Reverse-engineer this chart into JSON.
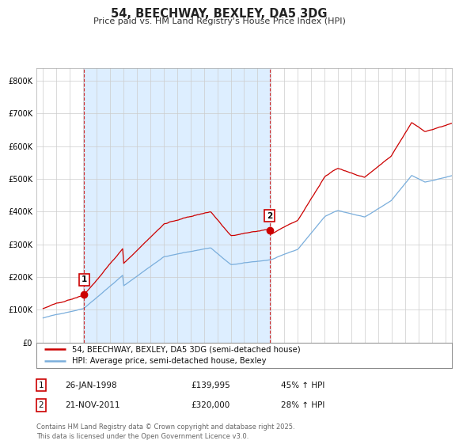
{
  "title": "54, BEECHWAY, BEXLEY, DA5 3DG",
  "subtitle": "Price paid vs. HM Land Registry's House Price Index (HPI)",
  "legend_line1": "54, BEECHWAY, BEXLEY, DA5 3DG (semi-detached house)",
  "legend_line2": "HPI: Average price, semi-detached house, Bexley",
  "sale1_date_label": "26-JAN-1998",
  "sale1_price": 139995,
  "sale1_price_label": "£139,995",
  "sale1_hpi_label": "45% ↑ HPI",
  "sale2_date_label": "21-NOV-2011",
  "sale2_price": 320000,
  "sale2_price_label": "£320,000",
  "sale2_hpi_label": "28% ↑ HPI",
  "sale1_year": 1998.07,
  "sale2_year": 2011.9,
  "red_color": "#cc0000",
  "blue_color": "#7aaedc",
  "shade_color": "#ddeeff",
  "background_color": "#ffffff",
  "grid_color": "#cccccc",
  "footer_text": "Contains HM Land Registry data © Crown copyright and database right 2025.\nThis data is licensed under the Open Government Licence v3.0.",
  "ylim_min": 0,
  "ylim_max": 840000,
  "xmin": 1995.0,
  "xmax": 2025.5
}
